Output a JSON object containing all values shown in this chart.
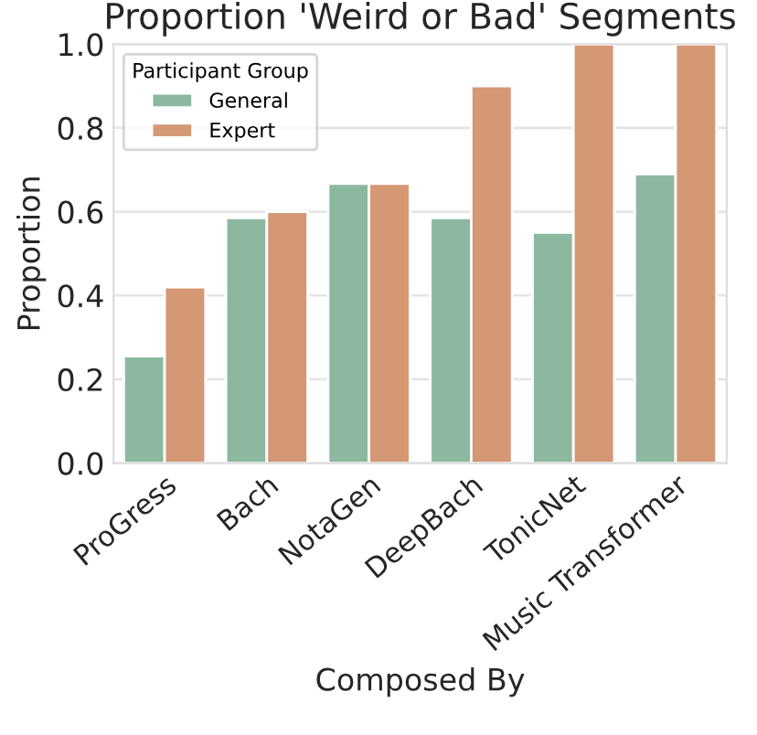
{
  "chart_data": {
    "type": "bar",
    "title": "Proportion 'Weird or Bad' Segments",
    "xlabel": "Composed By",
    "ylabel": "Proportion",
    "legend_title": "Participant Group",
    "categories": [
      "ProGress",
      "Bach",
      "NotaGen",
      "DeepBach",
      "TonicNet",
      "Music Transformer"
    ],
    "series": [
      {
        "name": "General",
        "color": "#8cb8a0",
        "values": [
          0.255,
          0.585,
          0.667,
          0.585,
          0.55,
          0.69
        ]
      },
      {
        "name": "Expert",
        "color": "#d49874",
        "values": [
          0.42,
          0.6,
          0.667,
          0.9,
          1.0,
          1.0
        ]
      }
    ],
    "ylim": [
      0,
      1
    ],
    "yticks": [
      {
        "value": 0,
        "label": "0.0"
      },
      {
        "value": 0.2,
        "label": "0.2"
      },
      {
        "value": 0.4,
        "label": "0.4"
      },
      {
        "value": 0.6,
        "label": "0.6"
      },
      {
        "value": 0.8,
        "label": "0.8"
      },
      {
        "value": 1,
        "label": "1.0"
      }
    ],
    "grid": "y",
    "legend": "top left"
  }
}
